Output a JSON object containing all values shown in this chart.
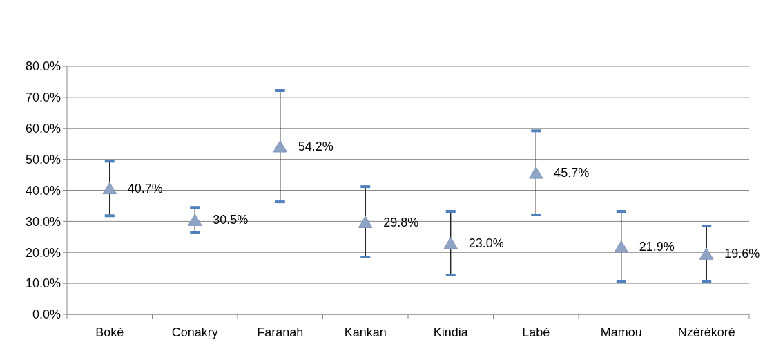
{
  "chart_data": {
    "type": "scatter",
    "categories": [
      "Boké",
      "Conakry",
      "Faranah",
      "Kankan",
      "Kindia",
      "Labé",
      "Mamou",
      "Nzérékoré"
    ],
    "values": [
      40.7,
      30.5,
      54.2,
      29.8,
      23.0,
      45.7,
      21.9,
      19.6
    ],
    "value_labels": [
      "40.7%",
      "30.5%",
      "54.2%",
      "29.8%",
      "23.0%",
      "45.7%",
      "21.9%",
      "19.6%"
    ],
    "errors": [
      [
        31.8,
        49.4
      ],
      [
        26.5,
        34.5
      ],
      [
        36.3,
        72.2
      ],
      [
        18.5,
        41.2
      ],
      [
        12.7,
        33.2
      ],
      [
        32.1,
        59.2
      ],
      [
        10.7,
        33.2
      ],
      [
        10.7,
        28.5
      ]
    ],
    "color": "#8fa3c4",
    "marker": "triangle",
    "grid": "y",
    "ylim": [
      0,
      80
    ],
    "yticks": [
      {
        "value": 0,
        "label": "0.0%"
      },
      {
        "value": 10,
        "label": "10.0%"
      },
      {
        "value": 20,
        "label": "20.0%"
      },
      {
        "value": 30,
        "label": "30.0%"
      },
      {
        "value": 40,
        "label": "40.0%"
      },
      {
        "value": 50,
        "label": "50.0%"
      },
      {
        "value": 60,
        "label": "60.0%"
      },
      {
        "value": 70,
        "label": "70.0%"
      },
      {
        "value": 80,
        "label": "80.0%"
      }
    ]
  }
}
